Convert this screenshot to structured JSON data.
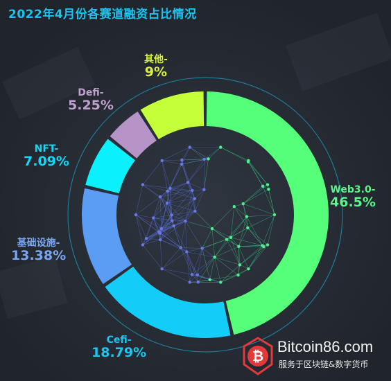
{
  "title": "2022年4月份各赛道融资占比情况",
  "chart_data": {
    "type": "donut",
    "title": "2022年4月份各赛道融资占比情况",
    "unit": "%",
    "slices": [
      {
        "name": "Web3.0-",
        "value": 46.5,
        "pct_label": "46.5%",
        "color": "#55ff7a"
      },
      {
        "name": "Cefi-",
        "value": 18.79,
        "pct_label": "18.79%",
        "color": "#13cdf8"
      },
      {
        "name": "基础设施-",
        "value": 13.38,
        "pct_label": "13.38%",
        "color": "#5b9cf5"
      },
      {
        "name": "NFT-",
        "value": 7.09,
        "pct_label": "7.09%",
        "color": "#0af1fd"
      },
      {
        "name": "Defi-",
        "value": 5.25,
        "pct_label": "5.25%",
        "color": "#b794c8"
      },
      {
        "name": "其他-",
        "value": 9,
        "pct_label": "9%",
        "color": "#c4ff3a"
      }
    ],
    "label_colors": {
      "Web3.0-": "#5df58a",
      "Cefi-": "#19c8f2",
      "基础设施-": "#7aa7f2",
      "NFT-": "#14d6f5",
      "Defi-": "#bfa0cf",
      "其他-": "#d8f040"
    },
    "legend": "none"
  },
  "watermark": {
    "site": "Bitcoin86.com",
    "slogan": "服务于区块链&数字货币",
    "logo_symbol": "bitcoin-icon",
    "logo_color": "#e23a3a"
  }
}
